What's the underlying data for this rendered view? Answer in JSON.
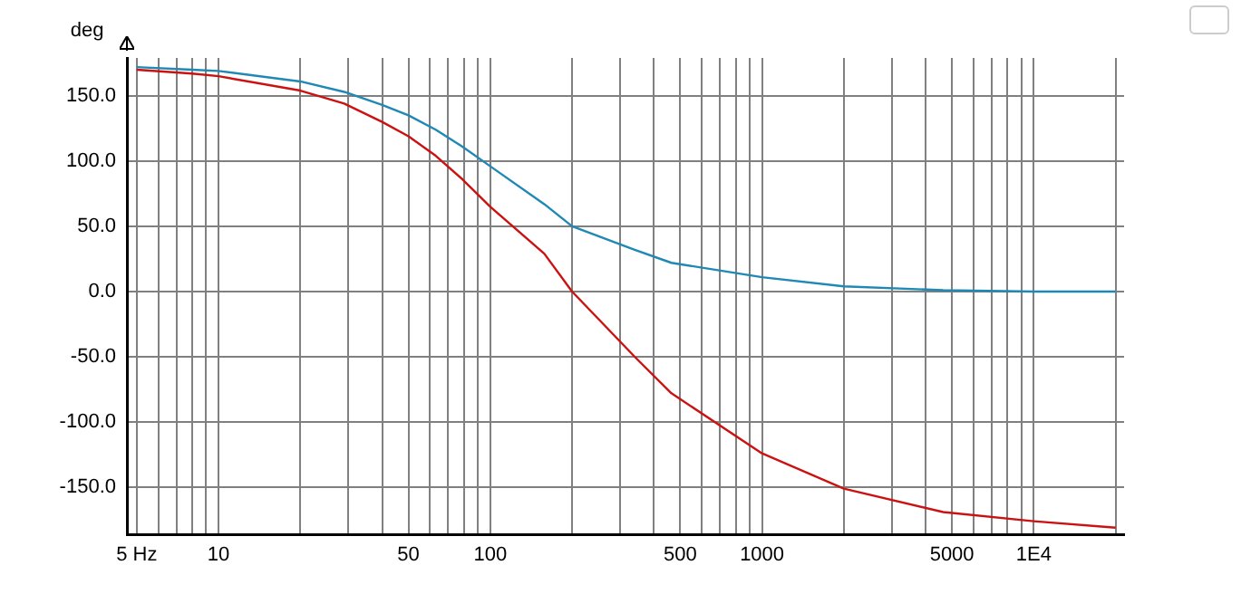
{
  "chart_data": {
    "type": "line",
    "ylabel": "deg",
    "log": "x",
    "grid": true,
    "marker": "none",
    "line_style": "solid",
    "xlim": [
      4.6,
      21500
    ],
    "ylim": [
      -186,
      179
    ],
    "xticks": [
      {
        "value": 5,
        "label": "5 Hz"
      },
      {
        "value": 6,
        "label": null
      },
      {
        "value": 7,
        "label": null
      },
      {
        "value": 8,
        "label": null
      },
      {
        "value": 9,
        "label": null
      },
      {
        "value": 10,
        "label": "10"
      },
      {
        "value": 20,
        "label": null
      },
      {
        "value": 30,
        "label": null
      },
      {
        "value": 40,
        "label": null
      },
      {
        "value": 50,
        "label": "50"
      },
      {
        "value": 60,
        "label": null
      },
      {
        "value": 70,
        "label": null
      },
      {
        "value": 80,
        "label": null
      },
      {
        "value": 90,
        "label": null
      },
      {
        "value": 100,
        "label": "100"
      },
      {
        "value": 200,
        "label": null
      },
      {
        "value": 300,
        "label": null
      },
      {
        "value": 400,
        "label": null
      },
      {
        "value": 500,
        "label": "500"
      },
      {
        "value": 600,
        "label": null
      },
      {
        "value": 700,
        "label": null
      },
      {
        "value": 800,
        "label": null
      },
      {
        "value": 900,
        "label": null
      },
      {
        "value": 1000,
        "label": "1000"
      },
      {
        "value": 2000,
        "label": null
      },
      {
        "value": 3000,
        "label": null
      },
      {
        "value": 4000,
        "label": null
      },
      {
        "value": 5000,
        "label": "5000"
      },
      {
        "value": 6000,
        "label": null
      },
      {
        "value": 7000,
        "label": null
      },
      {
        "value": 8000,
        "label": null
      },
      {
        "value": 9000,
        "label": null
      },
      {
        "value": 10000,
        "label": "1E4"
      },
      {
        "value": 20000,
        "label": null
      }
    ],
    "yticks": [
      {
        "value": -150,
        "label": "-150.0"
      },
      {
        "value": -100,
        "label": "-100.0"
      },
      {
        "value": -50,
        "label": "-50.0"
      },
      {
        "value": 0,
        "label": "0.0"
      },
      {
        "value": 50,
        "label": "50.0"
      },
      {
        "value": 100,
        "label": "100.0"
      },
      {
        "value": 150,
        "label": "150.0"
      }
    ],
    "x": [
      5,
      8,
      10,
      20,
      29,
      40,
      50,
      63,
      79,
      100,
      158,
      200,
      340,
      464,
      1000,
      2000,
      4640,
      10000,
      20000
    ],
    "series": [
      {
        "color": "#1f88b5",
        "values": [
          172,
          170,
          169,
          161,
          153,
          143,
          135,
          124,
          111,
          96,
          67,
          50,
          32,
          22,
          11,
          4,
          1,
          0,
          0
        ]
      },
      {
        "color": "#cc1111",
        "values": [
          170,
          167,
          165,
          154,
          144,
          130,
          119,
          104,
          86,
          65,
          29,
          0,
          -50,
          -78,
          -124,
          -151,
          -169,
          -176,
          -181
        ]
      }
    ]
  }
}
